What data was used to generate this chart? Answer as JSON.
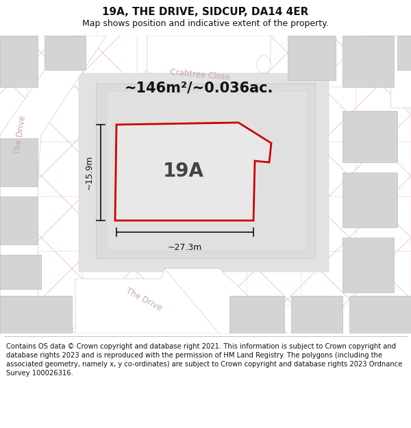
{
  "title": "19A, THE DRIVE, SIDCUP, DA14 4ER",
  "subtitle": "Map shows position and indicative extent of the property.",
  "footer": "Contains OS data © Crown copyright and database right 2021. This information is subject to Crown copyright and database rights 2023 and is reproduced with the permission of HM Land Registry. The polygons (including the associated geometry, namely x, y co-ordinates) are subject to Crown copyright and database rights 2023 Ordnance Survey 100026316.",
  "area_label": "~146m²/~0.036ac.",
  "plot_label": "19A",
  "width_label": "~27.3m",
  "height_label": "~15.9m",
  "map_bg": "#ececec",
  "road_color": "#ffffff",
  "building_fill": "#d4d4d4",
  "building_ec": "#bbbbbb",
  "property_fill": "#e8e8e8",
  "property_edge": "#cc0000",
  "faint_line_color": "#e8b4b4",
  "dim_line_color": "#111111",
  "street_label_color": "#c8a8a8",
  "title_fontsize": 11,
  "subtitle_fontsize": 9,
  "footer_fontsize": 7.2,
  "area_fontsize": 15,
  "dim_fontsize": 9
}
